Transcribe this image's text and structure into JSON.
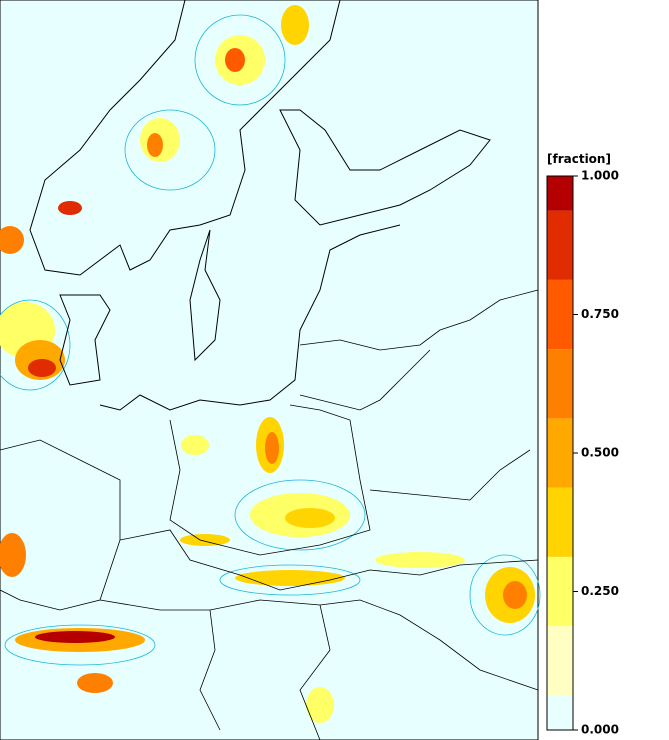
{
  "colorbar": {
    "label": "[fraction]",
    "range": [
      0,
      1
    ],
    "colors": [
      "#e8ffff",
      "#ffffc4",
      "#ffff66",
      "#ffd400",
      "#ffa800",
      "#ff8000",
      "#ff5a00",
      "#e02c00",
      "#b40000"
    ],
    "ticks": [
      {
        "value": 0,
        "label": "0.000"
      },
      {
        "value": 0.25,
        "label": "0.250"
      },
      {
        "value": 0.5,
        "label": "0.500"
      },
      {
        "value": 0.75,
        "label": "0.750"
      },
      {
        "value": 1,
        "label": "1.000"
      }
    ]
  }
}
